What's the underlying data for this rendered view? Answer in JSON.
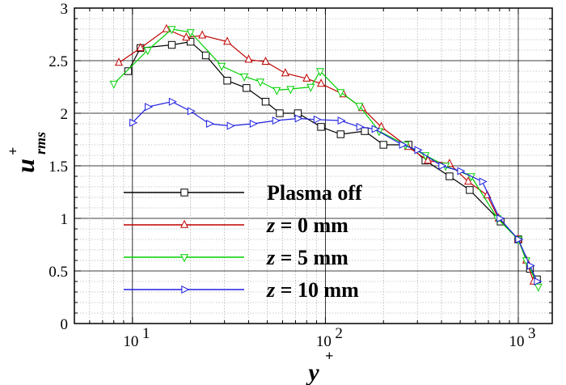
{
  "chart_data": {
    "type": "line",
    "x_scale": "log",
    "xlim": [
      5,
      1500
    ],
    "ylim": [
      0,
      3
    ],
    "grid": true,
    "xlabel": "y+",
    "ylabel": "u+rms",
    "x_ticks": [
      {
        "value": 10,
        "base": "10",
        "exp": "1"
      },
      {
        "value": 100,
        "base": "10",
        "exp": "2"
      },
      {
        "value": 1000,
        "base": "10",
        "exp": "3"
      }
    ],
    "y_ticks": [
      "0",
      "0.5",
      "1",
      "1.5",
      "2",
      "2.5",
      "3"
    ],
    "legend_position": "lower-left",
    "series": [
      {
        "name": "Plasma off",
        "color": "#000000",
        "marker": "square",
        "x": [
          9.5,
          11,
          16,
          20,
          24,
          31,
          39,
          49,
          58,
          72,
          95,
          120,
          160,
          200,
          270,
          330,
          440,
          560,
          810,
          1000,
          1150,
          1250
        ],
        "y": [
          2.4,
          2.62,
          2.65,
          2.68,
          2.55,
          2.31,
          2.24,
          2.11,
          2.0,
          2.0,
          1.87,
          1.8,
          1.83,
          1.7,
          1.7,
          1.55,
          1.4,
          1.27,
          0.97,
          0.8,
          0.52,
          0.42
        ]
      },
      {
        "name": "z = 0 mm",
        "color": "#c00000",
        "marker": "triangle-up",
        "x": [
          8.5,
          11,
          15,
          19,
          23,
          31,
          40,
          49,
          62,
          80,
          95,
          124,
          155,
          195,
          268,
          340,
          440,
          550,
          690,
          790,
          1000,
          1100,
          1200
        ],
        "y": [
          2.48,
          2.62,
          2.8,
          2.72,
          2.74,
          2.68,
          2.51,
          2.49,
          2.38,
          2.33,
          2.28,
          2.18,
          2.05,
          1.87,
          1.68,
          1.55,
          1.52,
          1.35,
          1.22,
          1.0,
          0.8,
          0.6,
          0.4
        ]
      },
      {
        "name": "z = 5 mm",
        "color": "#00d000",
        "marker": "triangle-down",
        "x": [
          8,
          12,
          16,
          20,
          29,
          38,
          46,
          56,
          66,
          84,
          94,
          120,
          150,
          190,
          260,
          330,
          420,
          570,
          780,
          1000,
          1100,
          1270
        ],
        "y": [
          2.28,
          2.6,
          2.8,
          2.77,
          2.45,
          2.35,
          2.3,
          2.22,
          2.23,
          2.25,
          2.4,
          2.2,
          2.07,
          1.83,
          1.7,
          1.6,
          1.5,
          1.4,
          1.0,
          0.8,
          0.6,
          0.35
        ]
      },
      {
        "name": "z = 10 mm",
        "color": "#2020e0",
        "marker": "triangle-right",
        "x": [
          10,
          12,
          16,
          20,
          25,
          32,
          42,
          55,
          72,
          90,
          120,
          150,
          180,
          250,
          300,
          400,
          500,
          650,
          800,
          1000,
          1150,
          1250
        ],
        "y": [
          1.91,
          2.06,
          2.11,
          2.02,
          1.9,
          1.88,
          1.9,
          1.93,
          1.95,
          1.94,
          1.93,
          1.87,
          1.85,
          1.7,
          1.65,
          1.5,
          1.45,
          1.35,
          1.0,
          0.8,
          0.55,
          0.4
        ]
      }
    ]
  }
}
